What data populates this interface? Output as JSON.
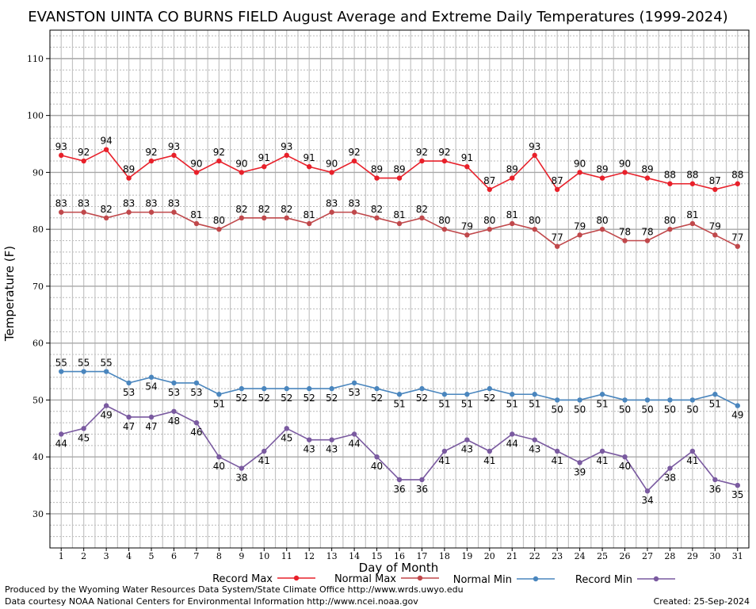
{
  "footer": {
    "credit_line1": "Produced by the Wyoming Water Resources Data System/State Climate Office http://www.wrds.uwyo.edu",
    "credit_line2": "Data courtesy NOAA National Centers for Environmental Information http://www.ncei.noaa.gov",
    "created": "Created:  25-Sep-2024"
  },
  "chart_data": {
    "type": "line",
    "title": "EVANSTON UINTA CO BURNS FIELD August Average and Extreme Daily Temperatures (1999-2024)",
    "xlabel": "Day of Month",
    "ylabel": "Temperature (F)",
    "x": [
      1,
      2,
      3,
      4,
      5,
      6,
      7,
      8,
      9,
      10,
      11,
      12,
      13,
      14,
      15,
      16,
      17,
      18,
      19,
      20,
      21,
      22,
      23,
      24,
      25,
      26,
      27,
      28,
      29,
      30,
      31
    ],
    "xlim": [
      0.5,
      31.5
    ],
    "ylim": [
      24,
      115
    ],
    "yticks": [
      30,
      40,
      50,
      60,
      70,
      80,
      90,
      100,
      110
    ],
    "grid": true,
    "legend_position": "bottom",
    "series": [
      {
        "name": "Record Max",
        "color": "#e8202a",
        "values": [
          93,
          92,
          94,
          89,
          92,
          93,
          90,
          92,
          90,
          91,
          93,
          91,
          90,
          92,
          89,
          89,
          92,
          92,
          91,
          87,
          89,
          93,
          87,
          90,
          89,
          90,
          89,
          88,
          88,
          87,
          88
        ]
      },
      {
        "name": "Normal Max",
        "color": "#c0484b",
        "values": [
          83,
          83,
          82,
          83,
          83,
          83,
          81,
          80,
          82,
          82,
          82,
          81,
          83,
          83,
          82,
          81,
          82,
          80,
          79,
          80,
          81,
          80,
          77,
          79,
          80,
          78,
          78,
          80,
          81,
          79,
          77
        ]
      },
      {
        "name": "Normal Min",
        "color": "#4a86be",
        "values": [
          55,
          55,
          55,
          53,
          54,
          53,
          53,
          51,
          52,
          52,
          52,
          52,
          52,
          53,
          52,
          51,
          52,
          51,
          51,
          52,
          51,
          51,
          50,
          50,
          51,
          50,
          50,
          50,
          50,
          51,
          49
        ]
      },
      {
        "name": "Record Min",
        "color": "#7a5aa0",
        "values": [
          44,
          45,
          49,
          47,
          47,
          48,
          46,
          40,
          38,
          41,
          45,
          43,
          43,
          44,
          40,
          36,
          36,
          41,
          43,
          41,
          44,
          43,
          41,
          39,
          41,
          40,
          34,
          38,
          41,
          36,
          35
        ]
      }
    ]
  }
}
